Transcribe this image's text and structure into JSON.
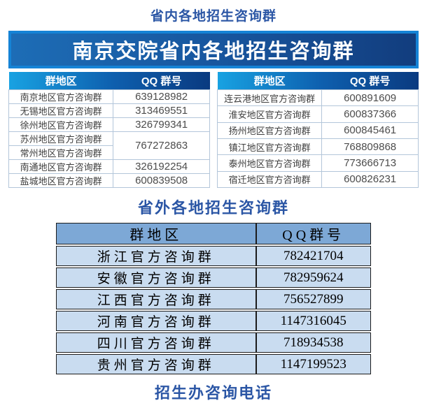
{
  "titles": {
    "in_province": "省内各地招生咨询群",
    "banner": "南京交院省内各地招生咨询群",
    "out_province": "省外各地招生咨询群",
    "phone": "招生办咨询电话"
  },
  "colors": {
    "title_blue": "#2b56a5",
    "banner_border": "#1583d6",
    "banner_gradient": [
      "#1d6db6",
      "#123d7e"
    ],
    "province_header_gradient": [
      "#18a2e2",
      "#0a3a80"
    ],
    "outside_header_bg": "#7da8d6",
    "outside_row_bg": "#c9dcf0"
  },
  "province_tables": {
    "left": {
      "headers": {
        "region": "群地区",
        "qq": "QQ 群号"
      },
      "rows": [
        {
          "region": "南京地区官方咨询群",
          "qq": "639128982"
        },
        {
          "region": "无锡地区官方咨询群",
          "qq": "313469551"
        },
        {
          "region": "徐州地区官方咨询群",
          "qq": "326799341"
        },
        {
          "region": "苏州地区官方咨询群",
          "qq": "767272863"
        },
        {
          "region": "常州地区官方咨询群"
        },
        {
          "region": "南通地区官方咨询群",
          "qq": "326192254"
        },
        {
          "region": "盐城地区官方咨询群",
          "qq": "600839508"
        }
      ]
    },
    "right": {
      "headers": {
        "region": "群地区",
        "qq": "QQ 群号"
      },
      "rows": [
        {
          "region": "连云港地区官方咨询群",
          "qq": "600891609"
        },
        {
          "region": "淮安地区官方咨询群",
          "qq": "600837366"
        },
        {
          "region": "扬州地区官方咨询群",
          "qq": "600845461"
        },
        {
          "region": "镇江地区官方咨询群",
          "qq": "768809868"
        },
        {
          "region": "泰州地区官方咨询群",
          "qq": "773666713"
        },
        {
          "region": "宿迁地区官方咨询群",
          "qq": "600826231"
        }
      ]
    }
  },
  "outside_table": {
    "headers": {
      "region": "群地区",
      "qq": "QQ群号"
    },
    "rows": [
      {
        "region": "浙江官方咨询群",
        "qq": "782421704"
      },
      {
        "region": "安徽官方咨询群",
        "qq": "782959624"
      },
      {
        "region": "江西官方咨询群",
        "qq": "756527899"
      },
      {
        "region": "河南官方咨询群",
        "qq": "1147316045"
      },
      {
        "region": "四川官方咨询群",
        "qq": "718934538"
      },
      {
        "region": "贵州官方咨询群",
        "qq": "1147199523"
      }
    ]
  }
}
